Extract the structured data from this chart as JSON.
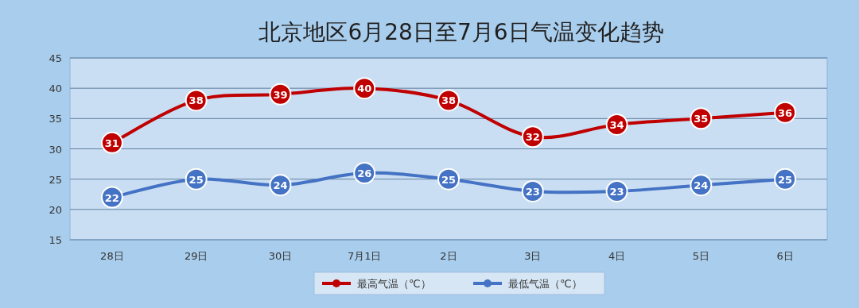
{
  "chart_data": {
    "type": "line",
    "title": "北京地区6月28日至7月6日气温变化趋势",
    "categories": [
      "28日",
      "29日",
      "30日",
      "7月1日",
      "2日",
      "3日",
      "4日",
      "5日",
      "6日"
    ],
    "series": [
      {
        "name": "最高气温（℃）",
        "color": "#c00000",
        "values": [
          31,
          38,
          39,
          40,
          38,
          32,
          34,
          35,
          36
        ]
      },
      {
        "name": "最低气温（℃）",
        "color": "#4472c4",
        "values": [
          22,
          25,
          24,
          26,
          25,
          23,
          23,
          24,
          25
        ]
      }
    ],
    "ylim": [
      15,
      45
    ],
    "yticks": [
      15,
      20,
      25,
      30,
      35,
      40,
      45
    ],
    "grid": "y",
    "legend": "bottom",
    "marker": "circle",
    "data_labels": true
  }
}
